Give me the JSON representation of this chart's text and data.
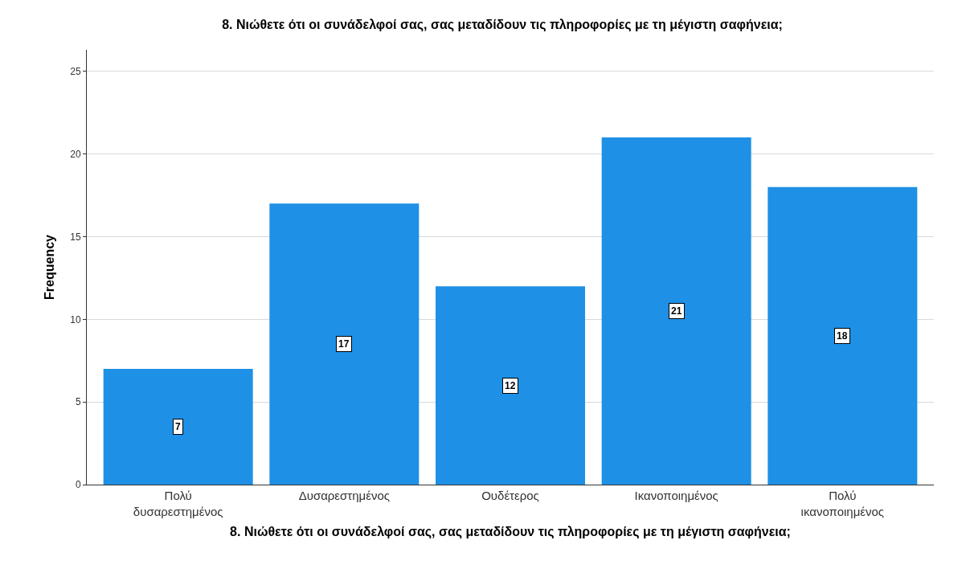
{
  "chart_data": {
    "type": "bar",
    "title": "8. Νιώθετε ότι οι συνάδελφοί σας, σας μεταδίδουν τις πληροφορίες με τη μέγιστη σαφήνεια;",
    "xlabel": "8. Νιώθετε ότι οι συνάδελφοί σας, σας μεταδίδουν τις πληροφορίες με τη μέγιστη σαφήνεια;",
    "ylabel": "Frequency",
    "categories": [
      "Πολύ\nδυσαρεστημένος",
      "Δυσαρεστημένος",
      "Ουδέτερος",
      "Ικανοποιημένος",
      "Πολύ\nικανοποιημένος"
    ],
    "values": [
      7,
      17,
      12,
      21,
      18
    ],
    "color": "#1e90e6",
    "ylim": [
      0,
      26.3
    ],
    "yticks": [
      0,
      5,
      10,
      15,
      20,
      25
    ],
    "grid": "y",
    "data_labels": true,
    "legend": false
  }
}
